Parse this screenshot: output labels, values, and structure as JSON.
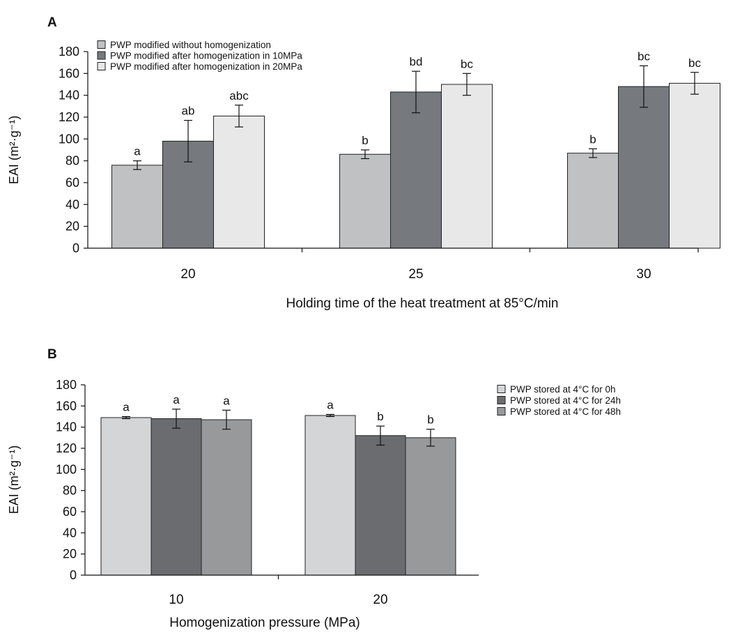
{
  "chart_data": [
    {
      "type": "bar",
      "panel_label": "A",
      "categories": [
        "20",
        "25",
        "30"
      ],
      "xlabel": "Holding time of the heat treatment at 85°C/min",
      "ylabel": "EAI (m²·g⁻¹)",
      "ylim": [
        0,
        180
      ],
      "yticks": [
        0,
        20,
        40,
        60,
        80,
        100,
        120,
        140,
        160,
        180
      ],
      "legend_position": "top-left",
      "series": [
        {
          "name": "PWP modified without homogenization",
          "color": "#c0c1c3",
          "values": [
            76,
            86,
            87
          ],
          "errors": [
            4,
            4,
            4
          ],
          "labels": [
            "a",
            "b",
            "b"
          ]
        },
        {
          "name": "PWP modified after homogenization in 10MPa",
          "color": "#76797d",
          "values": [
            98,
            143,
            148
          ],
          "errors": [
            19,
            19,
            19
          ],
          "labels": [
            "ab",
            "bd",
            "bc"
          ]
        },
        {
          "name": "PWP modified after homogenization in 20MPa",
          "color": "#e8e8e8",
          "values": [
            121,
            150,
            151
          ],
          "errors": [
            10,
            10,
            10
          ],
          "labels": [
            "abc",
            "bc",
            "bc"
          ]
        }
      ]
    },
    {
      "type": "bar",
      "panel_label": "B",
      "categories": [
        "10",
        "20"
      ],
      "xlabel": "Homogenization pressure (MPa)",
      "ylabel": "EAI (m²·g⁻¹)",
      "ylim": [
        0,
        180
      ],
      "yticks": [
        0,
        20,
        40,
        60,
        80,
        100,
        120,
        140,
        160,
        180
      ],
      "legend_position": "right",
      "series": [
        {
          "name": "PWP  stored at 4°C for 0h",
          "color": "#d4d5d7",
          "values": [
            149,
            151
          ],
          "errors": [
            1,
            1
          ],
          "labels": [
            "a",
            "a"
          ]
        },
        {
          "name": "PWP  stored at 4°C for 24h",
          "color": "#6b6c70",
          "values": [
            148,
            132
          ],
          "errors": [
            9,
            9
          ],
          "labels": [
            "a",
            "b"
          ]
        },
        {
          "name": "PWP  stored at 4°C for 48h",
          "color": "#97999b",
          "values": [
            147,
            130
          ],
          "errors": [
            9,
            8
          ],
          "labels": [
            "a",
            "b"
          ]
        }
      ]
    }
  ]
}
